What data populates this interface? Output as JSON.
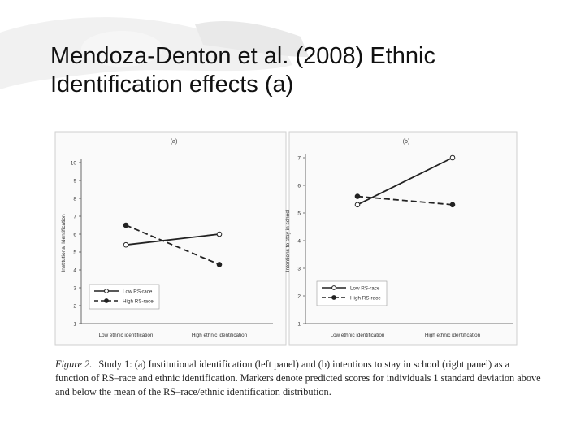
{
  "slide": {
    "title_line1": "Mendoza-Denton et al. (2008) Ethnic",
    "title_line2": "Identification effects (a)"
  },
  "caption": {
    "label": "Figure 2.",
    "text": "Study 1: (a) Institutional identification (left panel) and (b) intentions to stay in school (right panel) as a function of RS–race and ethnic identification. Markers denote predicted scores for individuals 1 standard deviation above and below the mean of the RS–race/ethnic identification distribution."
  },
  "chart_data": [
    {
      "panel": "(a)",
      "type": "line",
      "title": "(a)",
      "xlabel": "",
      "ylabel": "Institutional Identification",
      "categories": [
        "Low ethnic identification",
        "High ethnic identification"
      ],
      "ylim": [
        1,
        10
      ],
      "yticks": [
        1,
        2,
        3,
        4,
        5,
        6,
        7,
        8,
        9,
        10
      ],
      "grid": false,
      "legend_position": "lower-left",
      "series": [
        {
          "name": "Low RS-race",
          "values": [
            5.4,
            6.0
          ],
          "style": "solid",
          "marker": "open-circle",
          "color": "#222222"
        },
        {
          "name": "High RS-race",
          "values": [
            6.5,
            4.3
          ],
          "style": "dashed",
          "marker": "filled-circle",
          "color": "#222222"
        }
      ]
    },
    {
      "panel": "(b)",
      "type": "line",
      "title": "(b)",
      "xlabel": "",
      "ylabel": "Intentions to stay in school",
      "categories": [
        "Low ethnic identification",
        "High ethnic identification"
      ],
      "ylim": [
        1,
        7
      ],
      "yticks": [
        1,
        2,
        3,
        4,
        5,
        6,
        7
      ],
      "grid": false,
      "legend_position": "lower-left",
      "series": [
        {
          "name": "Low RS-race",
          "values": [
            5.3,
            7.0
          ],
          "style": "solid",
          "marker": "open-circle",
          "color": "#222222"
        },
        {
          "name": "High RS-race",
          "values": [
            5.6,
            5.3
          ],
          "style": "dashed",
          "marker": "filled-circle",
          "color": "#222222"
        }
      ]
    }
  ]
}
